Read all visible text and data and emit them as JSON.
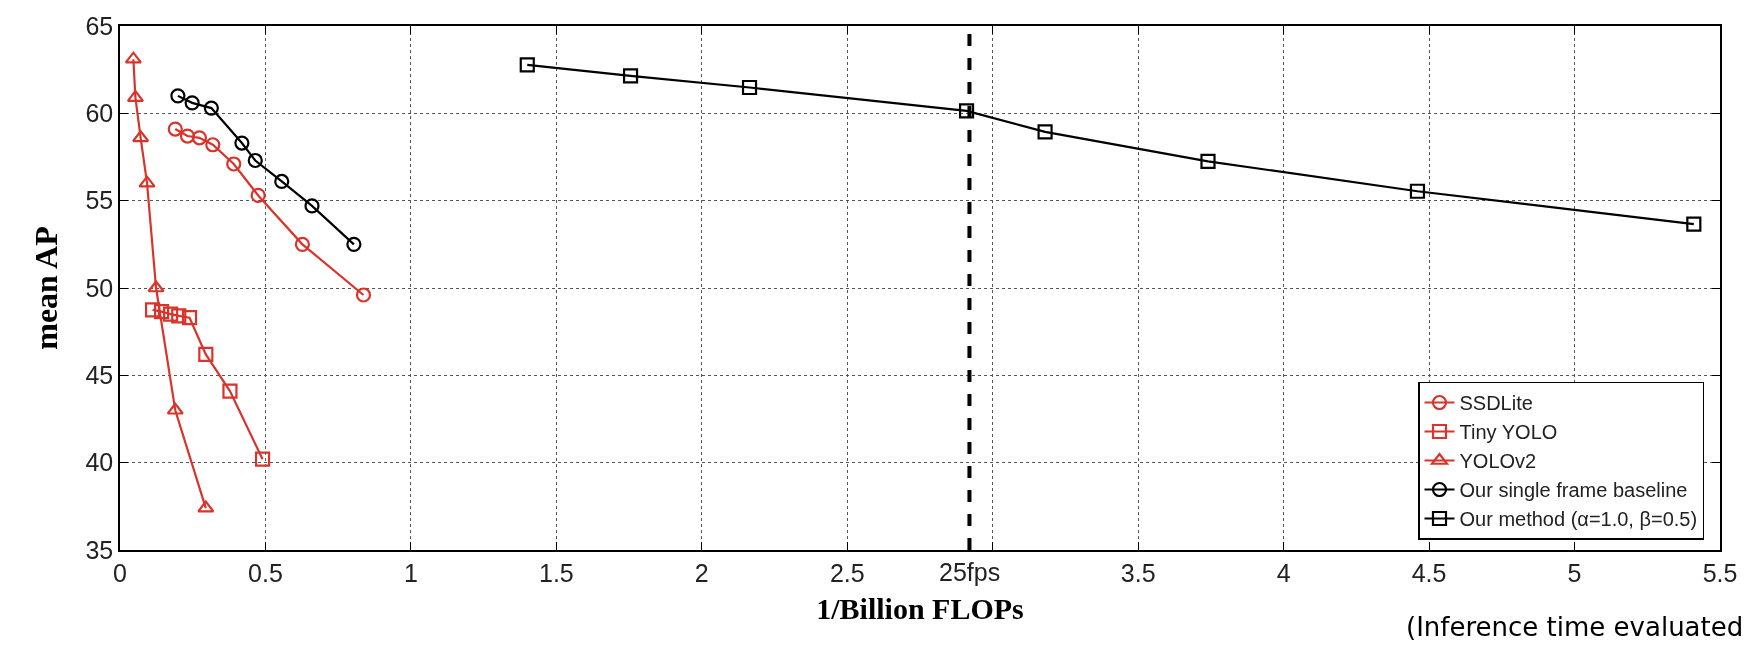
{
  "chart_data": {
    "type": "line",
    "xlabel": "1/Billion FLOPs",
    "ylabel": "mean AP",
    "xlim": [
      0,
      5.5
    ],
    "ylim": [
      35,
      65
    ],
    "xticks": [
      0,
      0.5,
      1,
      1.5,
      2,
      2.5,
      {
        "value": 3,
        "label": null
      },
      3.5,
      4,
      4.5,
      5,
      5.5
    ],
    "yticks": [
      35,
      40,
      45,
      50,
      55,
      60,
      65
    ],
    "grid": true,
    "legend": "bottom right",
    "line_style": "solid",
    "series": [
      {
        "name": "SSDLite",
        "color": "#d9342b",
        "marker": "circle",
        "x": [
          0.19,
          0.232,
          0.273,
          0.319,
          0.391,
          0.475,
          0.627,
          0.837
        ],
        "values": [
          59.1,
          58.7,
          58.6,
          58.2,
          57.1,
          55.3,
          52.5,
          49.6
        ]
      },
      {
        "name": "Tiny YOLO",
        "color": "#d9342b",
        "marker": "square",
        "x": [
          0.112,
          0.143,
          0.174,
          0.202,
          0.239,
          0.295,
          0.378,
          0.49
        ],
        "values": [
          48.75,
          48.65,
          48.5,
          48.4,
          48.3,
          46.2,
          44.1,
          40.2
        ]
      },
      {
        "name": "YOLOv2",
        "color": "#d9342b",
        "marker": "triangle",
        "x": [
          0.046,
          0.053,
          0.071,
          0.093,
          0.124,
          0.19,
          0.295
        ],
        "values": [
          63.1,
          60.9,
          58.6,
          56.0,
          50.0,
          43.0,
          37.4
        ]
      },
      {
        "name": "Our single frame baseline",
        "color": "#000000",
        "marker": "circle",
        "x": [
          0.199,
          0.248,
          0.314,
          0.419,
          0.465,
          0.556,
          0.66,
          0.804
        ],
        "values": [
          61.0,
          60.6,
          60.3,
          58.3,
          57.3,
          56.1,
          54.7,
          52.5
        ]
      },
      {
        "name": "Our method (α=1.0, β=0.5)",
        "color": "#000000",
        "marker": "square",
        "x": [
          1.4,
          1.755,
          2.164,
          2.91,
          3.18,
          3.74,
          4.46,
          5.41
        ],
        "values": [
          62.77,
          62.14,
          61.48,
          60.14,
          58.94,
          57.25,
          55.54,
          53.66
        ]
      }
    ],
    "ref_lines": [
      {
        "axis": "x",
        "value": 2.92,
        "label": "25fps",
        "color": "#000000",
        "line_style": "dashed"
      }
    ],
    "annotations": [
      "(Inference time evaluated"
    ]
  }
}
